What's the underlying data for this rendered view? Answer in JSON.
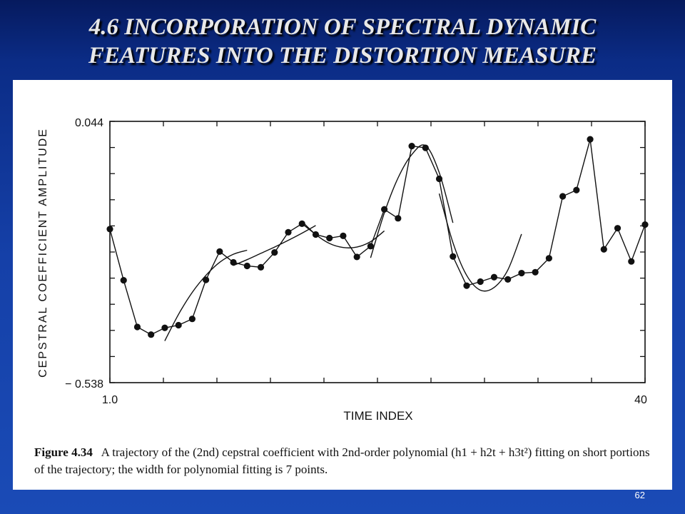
{
  "slide": {
    "title_line1": "4.6 INCORPORATION OF SPECTRAL DYNAMIC",
    "title_line2": "FEATURES INTO THE DISTORTION MEASURE",
    "number": "62"
  },
  "caption": {
    "figure_label": "Figure 4.34",
    "text": "A trajectory of the (2nd) cepstral coefficient with 2nd-order polynomial (h1 + h2t + h3t²) fitting on short portions of the trajectory; the width for polynomial fitting is 7 points."
  },
  "chart_data": {
    "type": "line",
    "title": "",
    "xlabel": "TIME INDEX",
    "ylabel": "CEPSTRAL COEFFICIENT AMPLITUDE",
    "x_tick_labels": [
      "1.0",
      "40"
    ],
    "y_tick_labels": [
      "0.044",
      "− 0.538"
    ],
    "xlim": [
      1,
      40
    ],
    "ylim": [
      -0.538,
      0.044
    ],
    "grid": false,
    "series": [
      {
        "x": [
          1,
          2,
          3,
          4,
          5,
          6,
          7,
          8,
          9,
          10,
          11,
          12,
          13,
          14,
          15,
          16,
          17,
          18,
          19,
          20,
          21,
          22,
          23,
          24,
          25,
          26,
          27,
          28,
          29,
          30,
          31,
          32,
          33,
          34,
          35,
          36,
          37,
          38,
          39,
          40
        ],
        "values": [
          -0.196,
          -0.31,
          -0.414,
          -0.431,
          -0.416,
          -0.41,
          -0.396,
          -0.309,
          -0.246,
          -0.27,
          -0.278,
          -0.281,
          -0.248,
          -0.203,
          -0.184,
          -0.208,
          -0.216,
          -0.211,
          -0.258,
          -0.234,
          -0.152,
          -0.172,
          -0.011,
          -0.015,
          -0.084,
          -0.257,
          -0.322,
          -0.313,
          -0.303,
          -0.308,
          -0.294,
          -0.292,
          -0.261,
          -0.123,
          -0.109,
          0.004,
          -0.241,
          -0.194,
          -0.268,
          -0.186
        ]
      }
    ],
    "fitted_segments": [
      {
        "x": [
          5,
          6,
          7,
          8,
          9,
          10,
          11
        ],
        "values": [
          -0.445,
          -0.386,
          -0.337,
          -0.299,
          -0.27,
          -0.252,
          -0.243
        ]
      },
      {
        "x": [
          10,
          11,
          12,
          13,
          14,
          15,
          16
        ],
        "values": [
          -0.277,
          -0.264,
          -0.25,
          -0.236,
          -0.221,
          -0.205,
          -0.188
        ]
      },
      {
        "x": [
          15,
          16,
          17,
          18,
          19,
          20,
          21
        ],
        "values": [
          -0.179,
          -0.208,
          -0.228,
          -0.237,
          -0.236,
          -0.224,
          -0.2
        ]
      },
      {
        "x": [
          20,
          21,
          22,
          23,
          24,
          25,
          26
        ],
        "values": [
          -0.26,
          -0.16,
          -0.082,
          -0.03,
          -0.01,
          -0.07,
          -0.182
        ]
      },
      {
        "x": [
          25,
          26,
          27,
          28,
          29,
          30,
          31
        ],
        "values": [
          -0.117,
          -0.226,
          -0.299,
          -0.332,
          -0.326,
          -0.287,
          -0.207
        ]
      }
    ]
  }
}
